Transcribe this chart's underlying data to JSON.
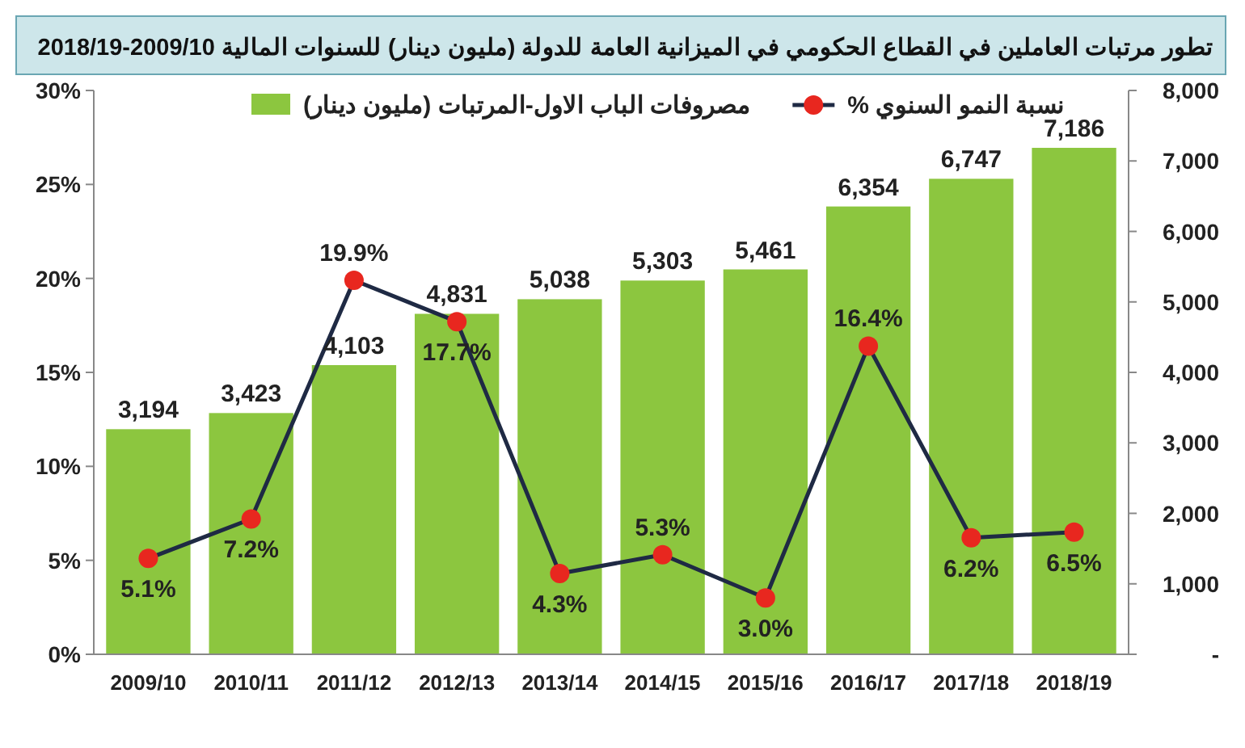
{
  "chart_data": {
    "type": "bar",
    "title": "تطور مرتبات العاملين في القطاع الحكومي في الميزانية العامة للدولة (مليون دينار) للسنوات المالية 2009/10-2018/19",
    "categories": [
      "2009/10",
      "2010/11",
      "2011/12",
      "2012/13",
      "2013/14",
      "2014/15",
      "2015/16",
      "2016/17",
      "2017/18",
      "2018/19"
    ],
    "series": [
      {
        "name": "نسبة النمو السنوي %",
        "type": "line",
        "color": "#1f2a44",
        "values": [
          5.1,
          7.2,
          19.9,
          17.7,
          4.3,
          5.3,
          3.0,
          16.4,
          6.2,
          6.5
        ],
        "value_labels": [
          "5.1%",
          "7.2%",
          "19.9%",
          "17.7%",
          "4.3%",
          "5.3%",
          "3.0%",
          "16.4%",
          "6.2%",
          "6.5%"
        ]
      },
      {
        "name": "مصروفات الباب الاول-المرتبات (مليون دينار)",
        "axis": "y2",
        "color": "#8cc63f",
        "values": [
          3194,
          3423,
          4103,
          4831,
          5038,
          5303,
          5461,
          6354,
          6747,
          7186
        ],
        "value_labels": [
          "3,194",
          "3,423",
          "4,103",
          "4,831",
          "5,038",
          "5,303",
          "5,461",
          "6,354",
          "6,747",
          "7,186"
        ]
      }
    ],
    "ylim": [
      0,
      30
    ],
    "yticks": [
      {
        "value": 0,
        "label": "0%"
      },
      {
        "value": 5,
        "label": "5%"
      },
      {
        "value": 10,
        "label": "10%"
      },
      {
        "value": 15,
        "label": "15%"
      },
      {
        "value": 20,
        "label": "20%"
      },
      {
        "value": 25,
        "label": "25%"
      },
      {
        "value": 30,
        "label": "30%"
      }
    ],
    "y2lim": [
      0,
      8000
    ],
    "y2ticks": [
      {
        "value": 0,
        "label": "-"
      },
      {
        "value": 1000,
        "label": "1,000"
      },
      {
        "value": 2000,
        "label": "2,000"
      },
      {
        "value": 3000,
        "label": "3,000"
      },
      {
        "value": 4000,
        "label": "4,000"
      },
      {
        "value": 5000,
        "label": "5,000"
      },
      {
        "value": 6000,
        "label": "6,000"
      },
      {
        "value": 7000,
        "label": "7,000"
      },
      {
        "value": 8000,
        "label": "8,000"
      }
    ],
    "marker": "circle",
    "legend": "top",
    "grid": false
  }
}
